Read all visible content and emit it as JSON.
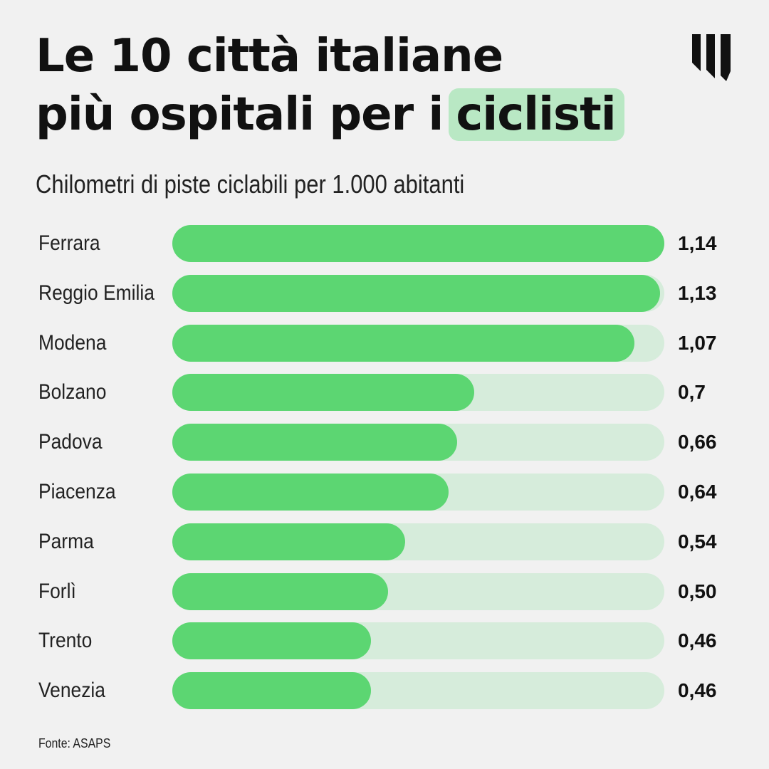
{
  "header": {
    "title_line1": "Le 10 città italiane",
    "title_line2": "più ospitali per i",
    "title_highlight": "ciclisti",
    "subtitle": "Chilometri di piste ciclabili per 1.000 abitanti",
    "logo_icon": "brand-w-logo-icon"
  },
  "colors": {
    "background": "#f1f1f1",
    "bar_fill": "#5cd672",
    "bar_track": "#d6ecdb",
    "highlight": "#b9e8c4",
    "text": "#111111"
  },
  "chart_data": {
    "type": "bar",
    "orientation": "horizontal",
    "categories": [
      "Ferrara",
      "Reggio Emilia",
      "Modena",
      "Bolzano",
      "Padova",
      "Piacenza",
      "Parma",
      "Forlì",
      "Trento",
      "Venezia"
    ],
    "values": [
      1.14,
      1.13,
      1.07,
      0.7,
      0.66,
      0.64,
      0.54,
      0.5,
      0.46,
      0.46
    ],
    "value_labels": [
      "1,14",
      "1,13",
      "1,07",
      "0,7",
      "0,66",
      "0,64",
      "0,54",
      "0,50",
      "0,46",
      "0,46"
    ],
    "xlim": [
      0,
      1.14
    ],
    "grid": false,
    "legend": "none"
  },
  "footer": {
    "source": "Fonte: ASAPS"
  }
}
